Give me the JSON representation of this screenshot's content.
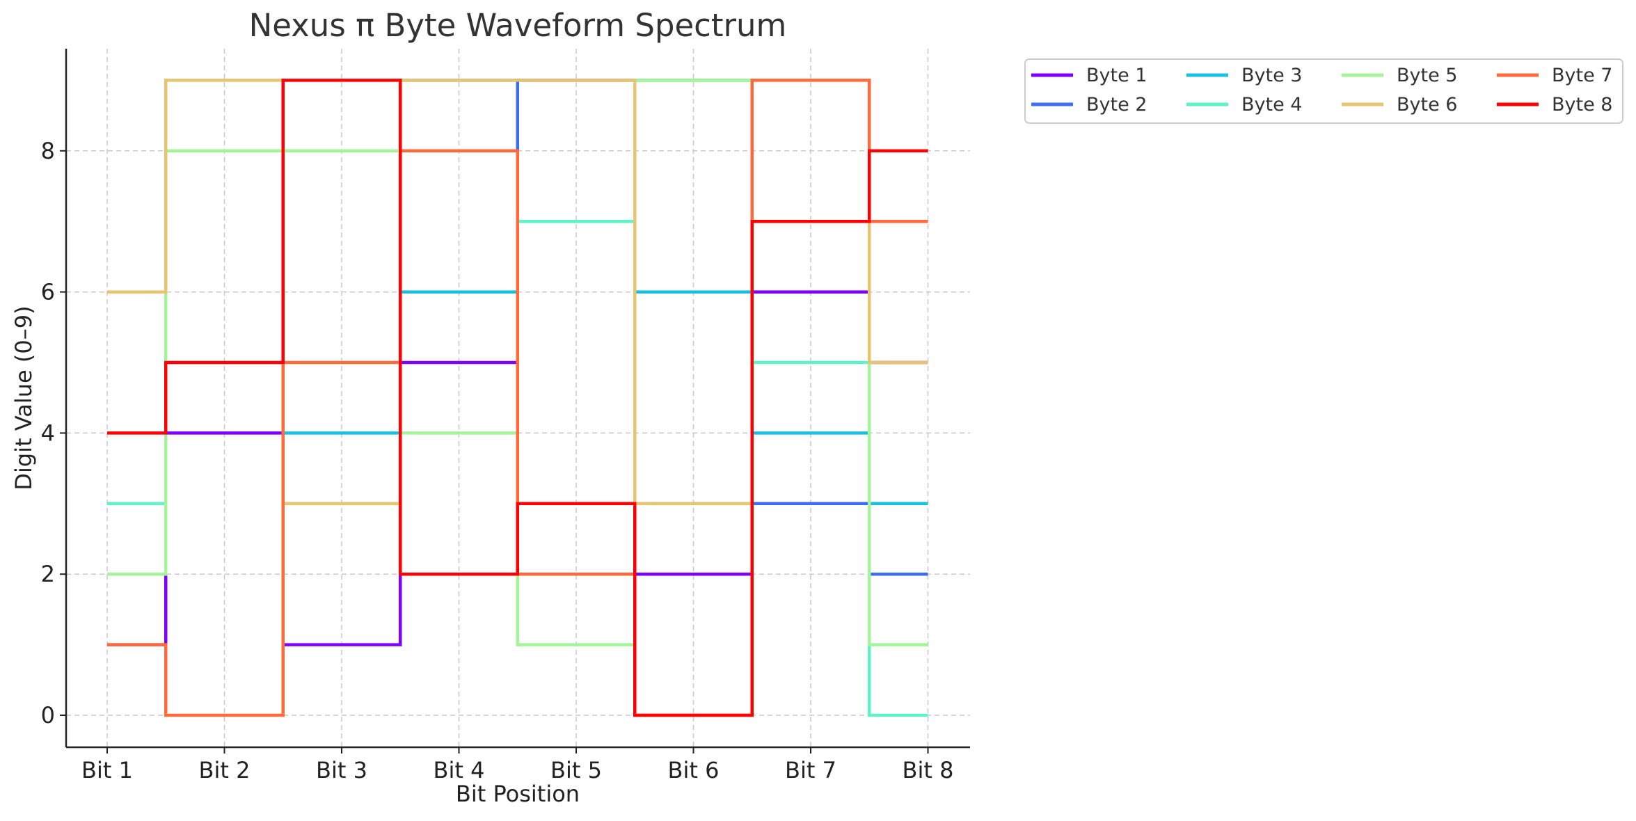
{
  "chart_data": {
    "type": "line",
    "step": "mid",
    "title": "Nexus π Byte Waveform Spectrum",
    "xlabel": "Bit Position",
    "ylabel": "Digit Value (0–9)",
    "categories": [
      "Bit 1",
      "Bit 2",
      "Bit 3",
      "Bit 4",
      "Bit 5",
      "Bit 6",
      "Bit 7",
      "Bit 8"
    ],
    "ylim": [
      -0.45,
      9.45
    ],
    "yticks": [
      0,
      2,
      4,
      6,
      8
    ],
    "grid": true,
    "legend_position": "outside top-right",
    "legend_columns": 4,
    "series": [
      {
        "name": "Byte 1",
        "color": "#7f00ff",
        "values": [
          1,
          4,
          1,
          5,
          9,
          2,
          6,
          5
        ]
      },
      {
        "name": "Byte 2",
        "color": "#3d6ef0",
        "values": [
          3,
          5,
          8,
          9,
          7,
          9,
          3,
          2
        ]
      },
      {
        "name": "Byte 3",
        "color": "#1ac0e0",
        "values": [
          3,
          8,
          4,
          6,
          2,
          6,
          4,
          3
        ]
      },
      {
        "name": "Byte 4",
        "color": "#5ff2c6",
        "values": [
          3,
          8,
          3,
          2,
          7,
          9,
          5,
          0
        ]
      },
      {
        "name": "Byte 5",
        "color": "#a4f49a",
        "values": [
          2,
          8,
          8,
          4,
          1,
          9,
          7,
          1
        ]
      },
      {
        "name": "Byte 6",
        "color": "#e7c46f",
        "values": [
          6,
          9,
          3,
          9,
          9,
          3,
          7,
          5
        ]
      },
      {
        "name": "Byte 7",
        "color": "#ff6a3a",
        "values": [
          1,
          0,
          5,
          8,
          2,
          0,
          9,
          7
        ]
      },
      {
        "name": "Byte 8",
        "color": "#ff0000",
        "values": [
          4,
          5,
          9,
          2,
          3,
          0,
          7,
          8
        ]
      }
    ]
  }
}
